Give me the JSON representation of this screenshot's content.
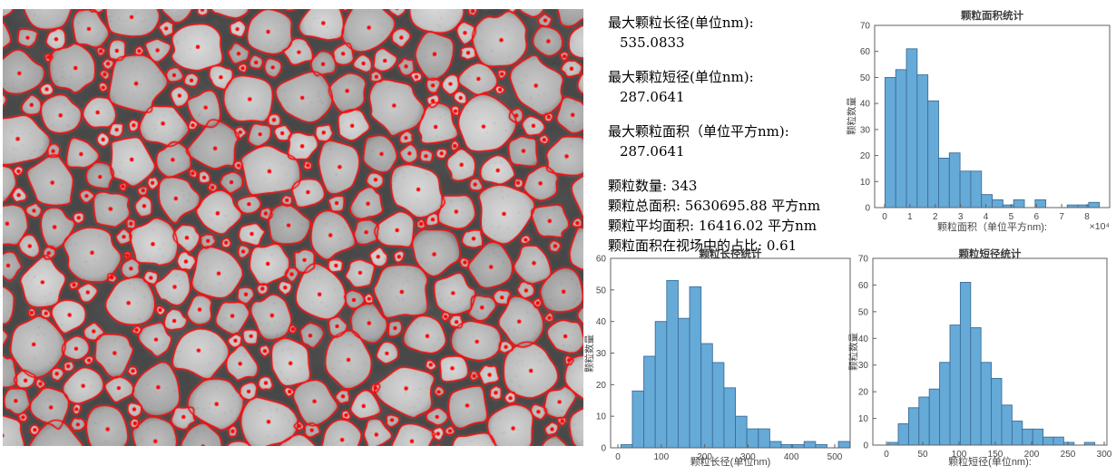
{
  "page": {
    "background": "#ffffff"
  },
  "micrograph": {
    "description": "grayscale micrograph with segmented particles outlined in red and red centroid dots",
    "particle_count": 343,
    "background_color": "#484848",
    "particle_fill_color": "#b0b0b0",
    "outline_color": "#ff0000",
    "dot_color": "#ff0000"
  },
  "stats": {
    "blocks": [
      {
        "label": "最大颗粒长径(单位nm):",
        "value": "535.0833"
      },
      {
        "label": "最大颗粒短径(单位nm):",
        "value": "287.0641"
      },
      {
        "label": "最大颗粒面积（单位平方nm):",
        "value": "287.0641"
      }
    ],
    "lines": [
      {
        "text": "颗粒数量: 343"
      },
      {
        "text": "颗粒总面积: 5630695.88 平方nm"
      },
      {
        "text": "颗粒平均面积: 16416.02 平方nm"
      },
      {
        "text": "颗粒面积在视场中的占比: 0.61"
      }
    ]
  },
  "colors": {
    "bar_fill": "#66aad8",
    "bar_edge": "#3d6e99",
    "axis": "#606060",
    "tick_text": "#464646"
  },
  "chart_data": [
    {
      "type": "bar",
      "title": "颗粒面积统计",
      "xlabel": "颗粒面积（单位平方nm):",
      "ylabel": "颗粒数量",
      "axis_multiplier": "×10⁴",
      "ylim": [
        0,
        70
      ],
      "yticks": [
        0,
        10,
        20,
        30,
        40,
        50,
        60,
        70
      ],
      "xticks": [
        {
          "v": 0,
          "label": "0"
        },
        {
          "v": 10000,
          "label": "1"
        },
        {
          "v": 20000,
          "label": "2"
        },
        {
          "v": 30000,
          "label": "3"
        },
        {
          "v": 40000,
          "label": "4"
        },
        {
          "v": 50000,
          "label": "5"
        },
        {
          "v": 60000,
          "label": "6"
        },
        {
          "v": 70000,
          "label": "7"
        },
        {
          "v": 80000,
          "label": "8"
        }
      ],
      "bin_start": 150,
      "bin_width": 4238,
      "values": [
        50,
        53,
        61,
        51,
        41,
        19,
        21,
        14,
        14,
        5,
        3,
        1,
        3,
        0,
        3,
        0,
        0,
        1,
        1,
        2
      ],
      "total_count": 343,
      "grid": false
    },
    {
      "type": "bar",
      "title": "颗粒长径统计",
      "xlabel": "颗粒长径(单位nm)",
      "ylabel": "颗粒数量",
      "ylim": [
        0,
        60
      ],
      "yticks": [
        0,
        10,
        20,
        30,
        40,
        50,
        60
      ],
      "xticks": [
        {
          "v": 0,
          "label": "0"
        },
        {
          "v": 100,
          "label": "100"
        },
        {
          "v": 200,
          "label": "200"
        },
        {
          "v": 300,
          "label": "300"
        },
        {
          "v": 400,
          "label": "400"
        },
        {
          "v": 500,
          "label": "500"
        }
      ],
      "bin_start": 7,
      "bin_width": 26.4,
      "values": [
        1,
        18,
        29,
        40,
        53,
        41,
        51,
        33,
        27,
        19,
        10,
        6,
        6,
        2,
        1,
        1,
        2,
        1,
        0,
        2
      ],
      "total_count": 343,
      "grid": false
    },
    {
      "type": "bar",
      "title": "颗粒短径统计",
      "xlabel": "颗粒短径(单位nm):",
      "ylabel": "颗粒数量",
      "ylim": [
        0,
        70
      ],
      "yticks": [
        0,
        10,
        20,
        30,
        40,
        50,
        60,
        70
      ],
      "xticks": [
        {
          "v": 0,
          "label": "0"
        },
        {
          "v": 50,
          "label": "50"
        },
        {
          "v": 100,
          "label": "100"
        },
        {
          "v": 150,
          "label": "150"
        },
        {
          "v": 200,
          "label": "200"
        },
        {
          "v": 250,
          "label": "250"
        },
        {
          "v": 300,
          "label": "300"
        }
      ],
      "bin_start": 2,
      "bin_width": 14.25,
      "values": [
        1,
        8,
        14,
        18,
        21,
        31,
        45,
        61,
        44,
        31,
        25,
        15,
        9,
        6,
        6,
        3,
        3,
        1,
        0,
        1
      ],
      "total_count": 343,
      "grid": false
    }
  ]
}
